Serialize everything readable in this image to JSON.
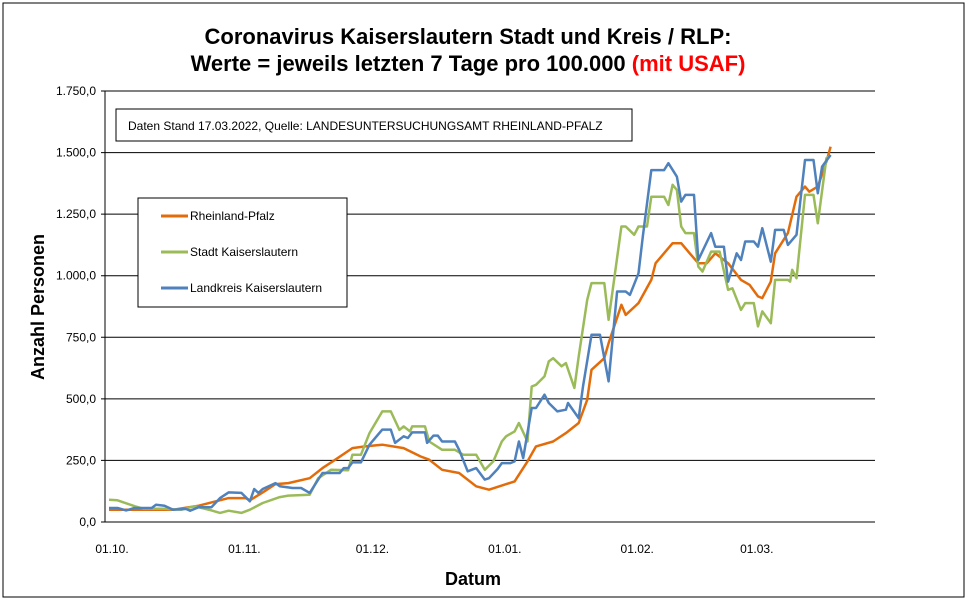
{
  "chart_data": {
    "type": "line",
    "title_line1": "Coronavirus Kaiserslautern Stadt und Kreis / RLP:",
    "title_line2_main": "Werte = jeweils letzten 7 Tage pro 100.000 ",
    "title_line2_highlight": "(mit USAF)",
    "highlight_color": "#ff0000",
    "source_note": "Daten Stand 17.03.2022, Quelle: LANDESUNTERSUCHUNGSAMT RHEINLAND-PFALZ",
    "xlabel": "Datum",
    "ylabel": "Anzahl Personen",
    "x_unit": "days since 01.10.2021",
    "ylim": [
      0,
      1750
    ],
    "yticks": [
      {
        "value": 0,
        "label": "0,0"
      },
      {
        "value": 250,
        "label": "250,0"
      },
      {
        "value": 500,
        "label": "500,0"
      },
      {
        "value": 750,
        "label": "750,0"
      },
      {
        "value": 1000,
        "label": "1.000,0"
      },
      {
        "value": 1250,
        "label": "1.250,0"
      },
      {
        "value": 1500,
        "label": "1.500,0"
      },
      {
        "value": 1750,
        "label": "1.750,0"
      }
    ],
    "xticks": [
      {
        "day": 0,
        "label": "01.10."
      },
      {
        "day": 31,
        "label": "01.11."
      },
      {
        "day": 61,
        "label": "01.12."
      },
      {
        "day": 92,
        "label": "01.01."
      },
      {
        "day": 123,
        "label": "01.02."
      },
      {
        "day": 151,
        "label": "01.03."
      }
    ],
    "grid": "horizontal",
    "legend_position": "upper-left",
    "series": [
      {
        "name": "Rheinland-Pfalz",
        "color": "#e36c0a",
        "points": [
          [
            0,
            50
          ],
          [
            15,
            50
          ],
          [
            21,
            66
          ],
          [
            28,
            97
          ],
          [
            32,
            97
          ],
          [
            33,
            88
          ],
          [
            36,
            120
          ],
          [
            39,
            154
          ],
          [
            42,
            158
          ],
          [
            47,
            178
          ],
          [
            50,
            219
          ],
          [
            53,
            253
          ],
          [
            57,
            300
          ],
          [
            60,
            307
          ],
          [
            64,
            314
          ],
          [
            69,
            300
          ],
          [
            73,
            266
          ],
          [
            75,
            253
          ],
          [
            78,
            212
          ],
          [
            82,
            199
          ],
          [
            86,
            145
          ],
          [
            89,
            131
          ],
          [
            95,
            165
          ],
          [
            98,
            246
          ],
          [
            100,
            307
          ],
          [
            104,
            327
          ],
          [
            107,
            361
          ],
          [
            110,
            402
          ],
          [
            112,
            496
          ],
          [
            113,
            618
          ],
          [
            116,
            665
          ],
          [
            117,
            726
          ],
          [
            120,
            882
          ],
          [
            121,
            841
          ],
          [
            124,
            889
          ],
          [
            127,
            983
          ],
          [
            128,
            1051
          ],
          [
            132,
            1132
          ],
          [
            134,
            1132
          ],
          [
            136,
            1091
          ],
          [
            138,
            1051
          ],
          [
            140,
            1051
          ],
          [
            142,
            1091
          ],
          [
            145,
            1051
          ],
          [
            148,
            983
          ],
          [
            150,
            963
          ],
          [
            152,
            916
          ],
          [
            153,
            909
          ],
          [
            155,
            976
          ],
          [
            156,
            1091
          ],
          [
            159,
            1173
          ],
          [
            161,
            1321
          ],
          [
            163,
            1362
          ],
          [
            164,
            1341
          ],
          [
            166,
            1362
          ],
          [
            168,
            1463
          ],
          [
            169,
            1524
          ]
        ]
      },
      {
        "name": "Stadt Kaiserslautern",
        "color": "#9bbb59",
        "points": [
          [
            0,
            90
          ],
          [
            2,
            88
          ],
          [
            6,
            64
          ],
          [
            8,
            54
          ],
          [
            13,
            54
          ],
          [
            17,
            50
          ],
          [
            20,
            64
          ],
          [
            24,
            47
          ],
          [
            26,
            37
          ],
          [
            28,
            46
          ],
          [
            31,
            37
          ],
          [
            33,
            50
          ],
          [
            36,
            77
          ],
          [
            40,
            101
          ],
          [
            42,
            107
          ],
          [
            47,
            111
          ],
          [
            49,
            178
          ],
          [
            52,
            212
          ],
          [
            56,
            210
          ],
          [
            57,
            273
          ],
          [
            59,
            273
          ],
          [
            61,
            361
          ],
          [
            64,
            449
          ],
          [
            66,
            449
          ],
          [
            68,
            374
          ],
          [
            69,
            388
          ],
          [
            70.5,
            368
          ],
          [
            71,
            388
          ],
          [
            74,
            388
          ],
          [
            75,
            327
          ],
          [
            78,
            293
          ],
          [
            81,
            293
          ],
          [
            83,
            273
          ],
          [
            86,
            273
          ],
          [
            88,
            212
          ],
          [
            90,
            246
          ],
          [
            92,
            327
          ],
          [
            93,
            348
          ],
          [
            95,
            368
          ],
          [
            96,
            402
          ],
          [
            98,
            327
          ],
          [
            99,
            550
          ],
          [
            100,
            557
          ],
          [
            102,
            591
          ],
          [
            103,
            652
          ],
          [
            104,
            665
          ],
          [
            106,
            632
          ],
          [
            107,
            645
          ],
          [
            109,
            544
          ],
          [
            110,
            672
          ],
          [
            112,
            902
          ],
          [
            113,
            970
          ],
          [
            116,
            970
          ],
          [
            117,
            821
          ],
          [
            120,
            1200
          ],
          [
            121,
            1200
          ],
          [
            123,
            1166
          ],
          [
            124,
            1200
          ],
          [
            126,
            1200
          ],
          [
            127,
            1321
          ],
          [
            130,
            1321
          ],
          [
            131,
            1287
          ],
          [
            132,
            1369
          ],
          [
            133,
            1348
          ],
          [
            134,
            1200
          ],
          [
            135,
            1173
          ],
          [
            137,
            1173
          ],
          [
            138,
            1037
          ],
          [
            139,
            1017
          ],
          [
            141,
            1098
          ],
          [
            143,
            1098
          ],
          [
            145,
            943
          ],
          [
            146,
            949
          ],
          [
            148,
            861
          ],
          [
            149,
            889
          ],
          [
            151,
            889
          ],
          [
            152,
            794
          ],
          [
            153,
            855
          ],
          [
            155,
            807
          ],
          [
            156,
            983
          ],
          [
            159,
            983
          ],
          [
            159.5,
            976
          ],
          [
            160,
            1024
          ],
          [
            161,
            990
          ],
          [
            163,
            1328
          ],
          [
            165,
            1328
          ],
          [
            166,
            1213
          ],
          [
            168,
            1477
          ],
          [
            169,
            1490
          ]
        ]
      },
      {
        "name": "Landkreis Kaiserslautern",
        "color": "#4f81bd",
        "points": [
          [
            0,
            57
          ],
          [
            2,
            57
          ],
          [
            4,
            47
          ],
          [
            6,
            57
          ],
          [
            10,
            57
          ],
          [
            11,
            70
          ],
          [
            13,
            66
          ],
          [
            15,
            50
          ],
          [
            18,
            53
          ],
          [
            19,
            46
          ],
          [
            21,
            60
          ],
          [
            24,
            60
          ],
          [
            26,
            97
          ],
          [
            28,
            120
          ],
          [
            31,
            118
          ],
          [
            33,
            84
          ],
          [
            34,
            134
          ],
          [
            35,
            118
          ],
          [
            36,
            134
          ],
          [
            39,
            158
          ],
          [
            40,
            145
          ],
          [
            43,
            138
          ],
          [
            45,
            138
          ],
          [
            47,
            118
          ],
          [
            49,
            172
          ],
          [
            50,
            199
          ],
          [
            54,
            199
          ],
          [
            55,
            219
          ],
          [
            56,
            219
          ],
          [
            57,
            242
          ],
          [
            59,
            242
          ],
          [
            61,
            314
          ],
          [
            64,
            375
          ],
          [
            66,
            375
          ],
          [
            67,
            321
          ],
          [
            69,
            348
          ],
          [
            70,
            341
          ],
          [
            71,
            364
          ],
          [
            74,
            364
          ],
          [
            74.5,
            321
          ],
          [
            76,
            351
          ],
          [
            77,
            351
          ],
          [
            78,
            327
          ],
          [
            81,
            327
          ],
          [
            82,
            293
          ],
          [
            84,
            206
          ],
          [
            86,
            219
          ],
          [
            88,
            172
          ],
          [
            89,
            178
          ],
          [
            91,
            215
          ],
          [
            92,
            239
          ],
          [
            94,
            239
          ],
          [
            95,
            246
          ],
          [
            96,
            327
          ],
          [
            97,
            260
          ],
          [
            99,
            463
          ],
          [
            100,
            463
          ],
          [
            102,
            517
          ],
          [
            103,
            483
          ],
          [
            105,
            449
          ],
          [
            107,
            456
          ],
          [
            107.5,
            483
          ],
          [
            110,
            422
          ],
          [
            111,
            550
          ],
          [
            113,
            760
          ],
          [
            115,
            760
          ],
          [
            117,
            571
          ],
          [
            119,
            936
          ],
          [
            121,
            936
          ],
          [
            122,
            922
          ],
          [
            124,
            1010
          ],
          [
            125,
            1159
          ],
          [
            127,
            1429
          ],
          [
            130,
            1429
          ],
          [
            131,
            1457
          ],
          [
            133,
            1402
          ],
          [
            134,
            1301
          ],
          [
            135,
            1328
          ],
          [
            137,
            1328
          ],
          [
            138,
            1064
          ],
          [
            141,
            1173
          ],
          [
            142,
            1118
          ],
          [
            144,
            1118
          ],
          [
            145,
            976
          ],
          [
            147,
            1091
          ],
          [
            148,
            1064
          ],
          [
            149,
            1139
          ],
          [
            151,
            1139
          ],
          [
            152,
            1118
          ],
          [
            153,
            1193
          ],
          [
            155,
            1057
          ],
          [
            156,
            1186
          ],
          [
            158,
            1186
          ],
          [
            159,
            1125
          ],
          [
            161,
            1166
          ],
          [
            163,
            1470
          ],
          [
            165,
            1470
          ],
          [
            166,
            1335
          ],
          [
            167,
            1443
          ],
          [
            169,
            1490
          ]
        ]
      }
    ]
  }
}
